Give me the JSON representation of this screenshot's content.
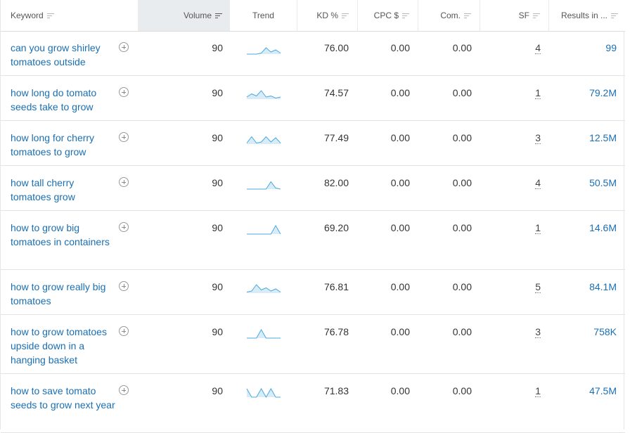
{
  "header": {
    "keyword": "Keyword",
    "volume": "Volume",
    "trend": "Trend",
    "kd": "KD %",
    "cpc": "CPC $",
    "com": "Com.",
    "sf": "SF",
    "results": "Results in ..."
  },
  "accent_color": "#1a6fb3",
  "trend_color": "#4aa8e0",
  "rows": [
    {
      "keyword": "can you grow shirley tomatoes outside",
      "volume": "90",
      "trend": [
        0,
        0,
        0,
        0.1,
        0.6,
        0.2,
        0.4,
        0.1
      ],
      "kd": "76.00",
      "cpc": "0.00",
      "com": "0.00",
      "sf": "4",
      "results": "99"
    },
    {
      "keyword": "how long do tomato seeds take to grow",
      "volume": "90",
      "trend": [
        0.2,
        0.5,
        0.3,
        0.8,
        0.2,
        0.3,
        0.1,
        0.2
      ],
      "kd": "74.57",
      "cpc": "0.00",
      "com": "0.00",
      "sf": "1",
      "results": "79.2M"
    },
    {
      "keyword": "how long for cherry tomatoes to grow",
      "volume": "90",
      "trend": [
        0.1,
        0.7,
        0.1,
        0.2,
        0.7,
        0.2,
        0.6,
        0.1
      ],
      "kd": "77.49",
      "cpc": "0.00",
      "com": "0.00",
      "sf": "3",
      "results": "12.5M"
    },
    {
      "keyword": "how tall cherry tomatoes grow",
      "volume": "90",
      "trend": [
        0,
        0,
        0,
        0,
        0,
        0.7,
        0.1,
        0
      ],
      "kd": "82.00",
      "cpc": "0.00",
      "com": "0.00",
      "sf": "4",
      "results": "50.5M"
    },
    {
      "keyword": "how to grow big tomatoes in containers",
      "volume": "90",
      "trend": [
        0,
        0,
        0,
        0,
        0,
        0,
        0.8,
        0
      ],
      "kd": "69.20",
      "cpc": "0.00",
      "com": "0.00",
      "sf": "1",
      "results": "14.6M"
    },
    {
      "keyword": "how to grow really big tomatoes",
      "volume": "90",
      "trend": [
        0.1,
        0.2,
        0.8,
        0.3,
        0.5,
        0.2,
        0.4,
        0.1
      ],
      "kd": "76.81",
      "cpc": "0.00",
      "com": "0.00",
      "sf": "5",
      "results": "84.1M"
    },
    {
      "keyword": "how to grow tomatoes upside down in a hanging basket",
      "volume": "90",
      "trend": [
        0,
        0,
        0,
        0.8,
        0,
        0,
        0,
        0
      ],
      "kd": "76.78",
      "cpc": "0.00",
      "com": "0.00",
      "sf": "3",
      "results": "758K"
    },
    {
      "keyword": "how to save tomato seeds to grow next year",
      "volume": "90",
      "trend": [
        0.8,
        0,
        0,
        0.8,
        0,
        0.8,
        0,
        0
      ],
      "kd": "71.83",
      "cpc": "0.00",
      "com": "0.00",
      "sf": "1",
      "results": "47.5M"
    }
  ]
}
